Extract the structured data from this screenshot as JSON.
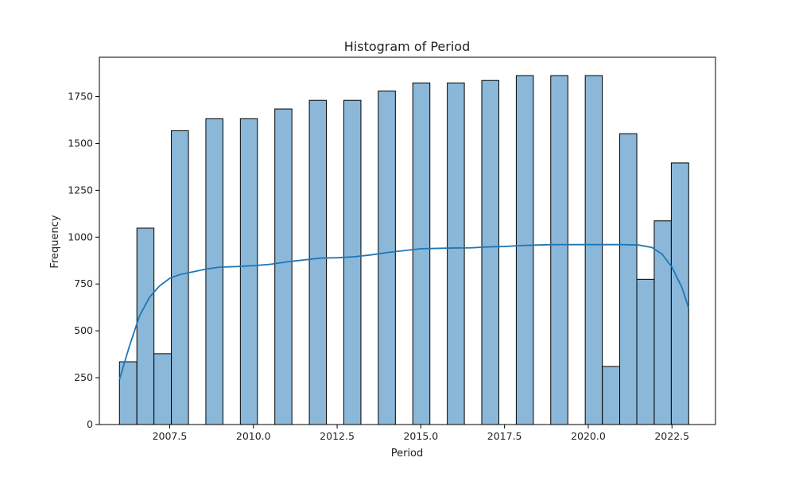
{
  "chart_data": {
    "type": "bar",
    "subtype": "histogram-with-kde",
    "title": "Histogram of Period",
    "xlabel": "Period",
    "ylabel": "Frequency",
    "xlim": [
      2005.4,
      2023.8
    ],
    "ylim": [
      0,
      1960
    ],
    "x_ticks": [
      2007.5,
      2010.0,
      2012.5,
      2015.0,
      2017.5,
      2020.0,
      2022.5
    ],
    "x_tick_labels": [
      "2007.5",
      "2010.0",
      "2012.5",
      "2015.0",
      "2017.5",
      "2020.0",
      "2022.5"
    ],
    "y_ticks": [
      0,
      250,
      500,
      750,
      1000,
      1250,
      1500,
      1750
    ],
    "y_tick_labels": [
      "0",
      "250",
      "500",
      "750",
      "1000",
      "1250",
      "1500",
      "1750"
    ],
    "bins": [
      {
        "x0": 2006.0,
        "x1": 2006.52,
        "count": 335
      },
      {
        "x0": 2006.52,
        "x1": 2007.03,
        "count": 1048
      },
      {
        "x0": 2007.03,
        "x1": 2007.55,
        "count": 378
      },
      {
        "x0": 2007.55,
        "x1": 2008.06,
        "count": 1568
      },
      {
        "x0": 2008.06,
        "x1": 2008.58,
        "count": 0
      },
      {
        "x0": 2008.58,
        "x1": 2009.09,
        "count": 1632
      },
      {
        "x0": 2009.09,
        "x1": 2009.61,
        "count": 0
      },
      {
        "x0": 2009.61,
        "x1": 2010.12,
        "count": 1632
      },
      {
        "x0": 2010.12,
        "x1": 2010.64,
        "count": 0
      },
      {
        "x0": 2010.64,
        "x1": 2011.15,
        "count": 1684
      },
      {
        "x0": 2011.15,
        "x1": 2011.67,
        "count": 0
      },
      {
        "x0": 2011.67,
        "x1": 2012.18,
        "count": 1730
      },
      {
        "x0": 2012.18,
        "x1": 2012.7,
        "count": 0
      },
      {
        "x0": 2012.7,
        "x1": 2013.21,
        "count": 1730
      },
      {
        "x0": 2013.21,
        "x1": 2013.73,
        "count": 0
      },
      {
        "x0": 2013.73,
        "x1": 2014.24,
        "count": 1780
      },
      {
        "x0": 2014.24,
        "x1": 2014.76,
        "count": 0
      },
      {
        "x0": 2014.76,
        "x1": 2015.27,
        "count": 1823
      },
      {
        "x0": 2015.27,
        "x1": 2015.79,
        "count": 0
      },
      {
        "x0": 2015.79,
        "x1": 2016.3,
        "count": 1823
      },
      {
        "x0": 2016.3,
        "x1": 2016.82,
        "count": 0
      },
      {
        "x0": 2016.82,
        "x1": 2017.33,
        "count": 1836
      },
      {
        "x0": 2017.33,
        "x1": 2017.85,
        "count": 0
      },
      {
        "x0": 2017.85,
        "x1": 2018.36,
        "count": 1862
      },
      {
        "x0": 2018.36,
        "x1": 2018.88,
        "count": 0
      },
      {
        "x0": 2018.88,
        "x1": 2019.39,
        "count": 1862
      },
      {
        "x0": 2019.39,
        "x1": 2019.91,
        "count": 0
      },
      {
        "x0": 2019.91,
        "x1": 2020.42,
        "count": 1862
      },
      {
        "x0": 2020.42,
        "x1": 2020.94,
        "count": 310
      },
      {
        "x0": 2020.94,
        "x1": 2021.45,
        "count": 1552
      },
      {
        "x0": 2021.45,
        "x1": 2021.97,
        "count": 775
      },
      {
        "x0": 2021.97,
        "x1": 2022.48,
        "count": 1087
      },
      {
        "x0": 2022.48,
        "x1": 2023.0,
        "count": 1396
      }
    ],
    "kde": {
      "x": [
        2006.0,
        2006.3,
        2006.6,
        2006.9,
        2007.2,
        2007.5,
        2007.8,
        2008.2,
        2008.6,
        2009.0,
        2009.5,
        2010.0,
        2010.5,
        2011.0,
        2011.5,
        2012.0,
        2012.5,
        2013.0,
        2013.5,
        2014.0,
        2014.5,
        2015.0,
        2015.5,
        2016.0,
        2016.5,
        2017.0,
        2017.5,
        2018.0,
        2018.5,
        2019.0,
        2019.5,
        2020.0,
        2020.5,
        2021.0,
        2021.5,
        2021.9,
        2022.2,
        2022.5,
        2022.8,
        2023.0
      ],
      "y": [
        240,
        420,
        580,
        680,
        740,
        780,
        800,
        815,
        830,
        840,
        843,
        848,
        855,
        868,
        878,
        888,
        890,
        895,
        905,
        918,
        928,
        938,
        940,
        942,
        943,
        948,
        950,
        955,
        958,
        960,
        960,
        960,
        960,
        960,
        958,
        945,
        910,
        840,
        730,
        620
      ]
    },
    "bar_color": "#8bb8d9",
    "bar_edge_color": "#000000",
    "kde_color": "#1f77b4",
    "grid": false,
    "legend": "none"
  }
}
